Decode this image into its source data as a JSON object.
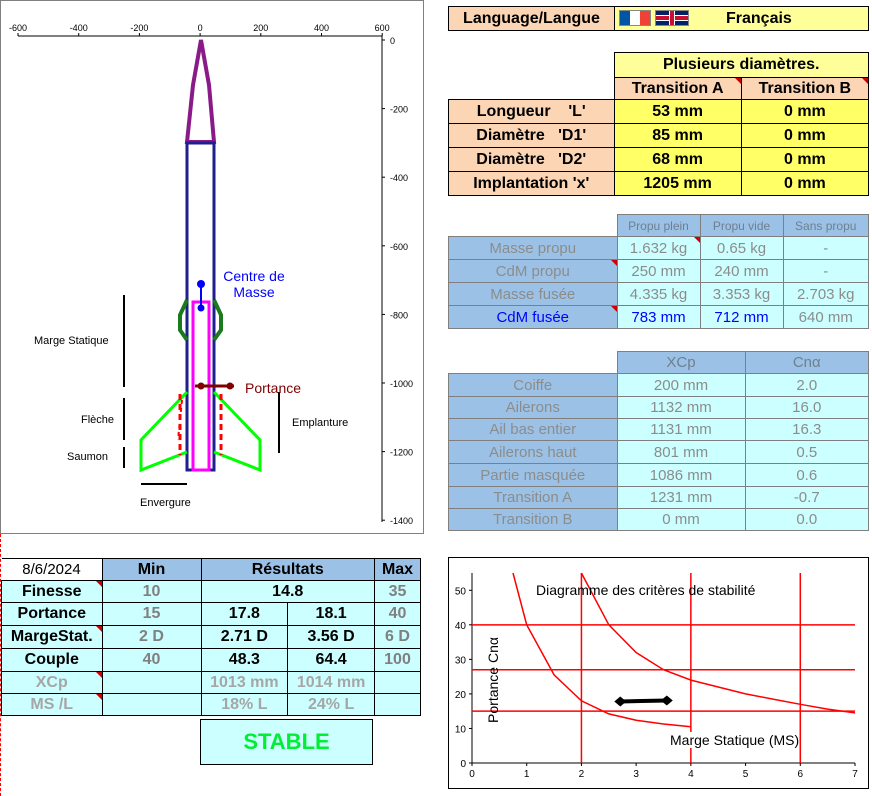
{
  "rocket_view": {
    "x_ticks": [
      "-600",
      "-400",
      "-200",
      "0",
      "200",
      "400",
      "600"
    ],
    "y_ticks": [
      "0",
      "-200",
      "-400",
      "-600",
      "-800",
      "-1000",
      "-1200",
      "-1400"
    ],
    "labels": {
      "cg": "Centre de\nMasse",
      "cp": "Portance",
      "static_margin": "Marge Statique",
      "sweep": "Flèche",
      "tip": "Saumon",
      "root": "Emplanture",
      "span": "Envergure"
    },
    "colors": {
      "nose": "#8b1a89",
      "body": "#1f1f8f",
      "fins": "#00ff00",
      "cg": "#0000ff",
      "cp": "#7f0000",
      "tube": "#ff00ff",
      "rings": "#1b7a1b"
    }
  },
  "language": {
    "label": "Language/Langue",
    "flags": [
      "flag-fr-icon",
      "flag-uk-icon"
    ],
    "value": "Français"
  },
  "transitions": {
    "title": "Plusieurs diamètres.",
    "col_a": "Transition A",
    "col_b": "Transition B",
    "rows": [
      {
        "label": "Longueur",
        "tag": "'L'",
        "a": "53 mm",
        "b": "0 mm"
      },
      {
        "label": "Diamètre",
        "tag": "'D1'",
        "a": "85 mm",
        "b": "0 mm"
      },
      {
        "label": "Diamètre",
        "tag": "'D2'",
        "a": "68 mm",
        "b": "0 mm"
      },
      {
        "label": "Implantation 'x'",
        "tag": "",
        "a": "1205 mm",
        "b": "0 mm"
      }
    ]
  },
  "masses": {
    "headers": [
      "Propu plein",
      "Propu vide",
      "Sans propu"
    ],
    "rows": [
      {
        "label": "Masse propu",
        "v": [
          "1.632 kg",
          "0.65 kg",
          "-"
        ]
      },
      {
        "label": "CdM propu",
        "v": [
          "250 mm",
          "240 mm",
          "-"
        ]
      },
      {
        "label": "Masse fusée",
        "v": [
          "4.335 kg",
          "3.353 kg",
          "2.703 kg"
        ]
      },
      {
        "label": "CdM fusée",
        "v": [
          "783 mm",
          "712 mm",
          "640 mm"
        ]
      }
    ]
  },
  "aero": {
    "headers": [
      "XCp",
      "Cnα"
    ],
    "rows": [
      {
        "label": "Coiffe",
        "xcp": "200 mm",
        "cn": "2.0"
      },
      {
        "label": "Ailerons",
        "xcp": "1132 mm",
        "cn": "16.0"
      },
      {
        "label": "Ail bas entier",
        "xcp": "1131 mm",
        "cn": "16.3"
      },
      {
        "label": "Ailerons haut",
        "xcp": "801 mm",
        "cn": "0.5"
      },
      {
        "label": "Partie masquée",
        "xcp": "1086 mm",
        "cn": "0.6"
      },
      {
        "label": "Transition A",
        "xcp": "1231 mm",
        "cn": "-0.7"
      },
      {
        "label": "Transition B",
        "xcp": "0 mm",
        "cn": "0.0"
      }
    ]
  },
  "results": {
    "date": "8/6/2024",
    "headers": {
      "min": "Min",
      "res": "Résultats",
      "max": "Max"
    },
    "rows": [
      {
        "label": "Finesse",
        "min": "10",
        "r1": "14.8",
        "r2": "",
        "max": "35"
      },
      {
        "label": "Portance",
        "min": "15",
        "r1": "17.8",
        "r2": "18.1",
        "max": "40"
      },
      {
        "label": "MargeStat.",
        "min": "2 D",
        "r1": "2.71 D",
        "r2": "3.56 D",
        "max": "6 D"
      },
      {
        "label": "Couple",
        "min": "40",
        "r1": "48.3",
        "r2": "64.4",
        "max": "100"
      },
      {
        "label": "XCp",
        "min": "",
        "r1": "1013 mm",
        "r2": "1014 mm",
        "max": ""
      },
      {
        "label": "MS /L",
        "min": "",
        "r1": "18% L",
        "r2": "24% L",
        "max": ""
      }
    ],
    "status": "STABLE"
  },
  "chart_data": {
    "type": "line",
    "title": "Diagramme des critères de stabilité",
    "xlabel": "Marge Statique (MS)",
    "ylabel": "Portance Cnα",
    "xlim": [
      0,
      7
    ],
    "ylim": [
      0,
      55
    ],
    "x_ticks": [
      "0",
      "1",
      "2",
      "3",
      "4",
      "5",
      "6",
      "7"
    ],
    "y_ticks": [
      "0",
      "10",
      "20",
      "30",
      "40",
      "50"
    ],
    "grid": true,
    "thresholds": {
      "x": [
        2,
        4,
        6
      ],
      "y": [
        15,
        27,
        40
      ]
    },
    "series": [
      {
        "x": [
          0.75,
          1.0,
          1.5,
          2.0,
          2.5,
          3.0,
          3.5,
          4.0
        ],
        "y": [
          55,
          40,
          25.5,
          18,
          14.2,
          12.4,
          11.3,
          10.5
        ]
      },
      {
        "x": [
          2.0,
          2.5,
          3.0,
          3.5,
          4.0,
          4.5,
          5.0,
          5.5,
          6.0,
          6.5,
          7.0
        ],
        "y": [
          55,
          40,
          32,
          27,
          24,
          22,
          20,
          18.5,
          17,
          15.6,
          14.5
        ]
      }
    ],
    "result_segment": {
      "x": [
        2.71,
        3.56
      ],
      "y": [
        17.8,
        18.1
      ]
    },
    "colors": {
      "curves": "#ff0000",
      "grid": "#ff0000",
      "result": "#000000"
    }
  }
}
